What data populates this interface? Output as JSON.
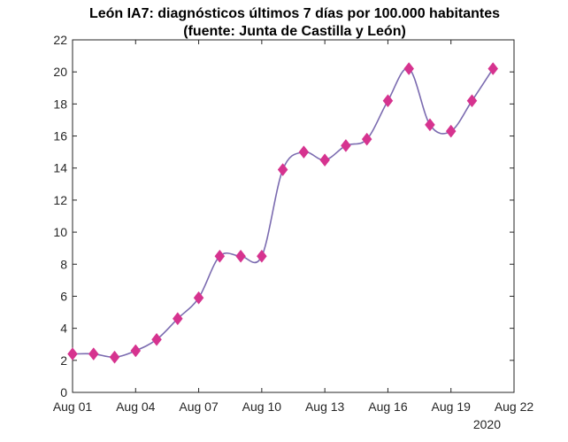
{
  "chart_data": {
    "type": "line",
    "title_line1": "León IA7: diagnósticos últimos 7 días por 100.000 habitantes",
    "title_line2": "(fuente: Junta de Castilla y León)",
    "xlabel": "",
    "ylabel": "",
    "x_year_label": "2020",
    "xlim": [
      0,
      21
    ],
    "ylim": [
      0,
      22
    ],
    "y_ticks": [
      0,
      2,
      4,
      6,
      8,
      10,
      12,
      14,
      16,
      18,
      20,
      22
    ],
    "x_ticks": [
      {
        "day": 0,
        "label": "Aug 01"
      },
      {
        "day": 3,
        "label": "Aug 04"
      },
      {
        "day": 6,
        "label": "Aug 07"
      },
      {
        "day": 9,
        "label": "Aug 10"
      },
      {
        "day": 12,
        "label": "Aug 13"
      },
      {
        "day": 15,
        "label": "Aug 16"
      },
      {
        "day": 18,
        "label": "Aug 19"
      },
      {
        "day": 21,
        "label": "Aug 22"
      }
    ],
    "series": [
      {
        "name": "IA7",
        "line_color": "#7b6bb0",
        "marker_color": "#d6338f",
        "marker": "diamond",
        "x": [
          0,
          1,
          2,
          3,
          4,
          5,
          6,
          7,
          8,
          9,
          10,
          11,
          12,
          13,
          14,
          15,
          16,
          17,
          18,
          19,
          20
        ],
        "values": [
          2.4,
          2.4,
          2.2,
          2.6,
          3.3,
          4.6,
          5.9,
          8.5,
          8.5,
          8.5,
          13.9,
          15.0,
          14.5,
          15.4,
          15.8,
          18.2,
          20.2,
          16.7,
          16.3,
          18.2,
          20.2
        ]
      }
    ]
  }
}
